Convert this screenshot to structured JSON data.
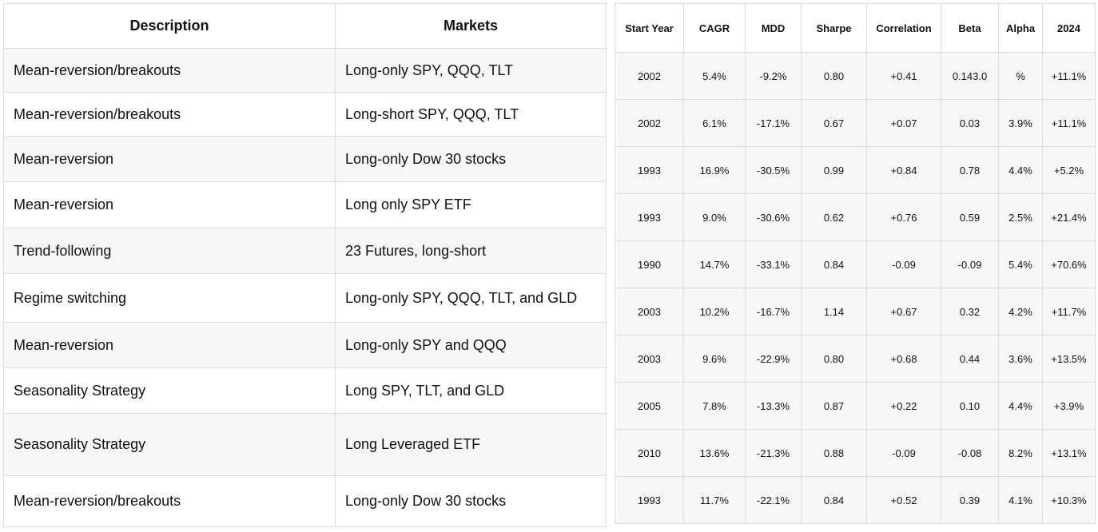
{
  "strategies": {
    "headers": {
      "description": "Description",
      "markets": "Markets"
    },
    "rows": [
      {
        "description": "Mean-reversion/breakouts",
        "markets": "Long-only SPY, QQQ, TLT"
      },
      {
        "description": "Mean-reversion/breakouts",
        "markets": "Long-short SPY, QQQ, TLT"
      },
      {
        "description": "Mean-reversion",
        "markets": "Long-only Dow 30 stocks"
      },
      {
        "description": "Mean-reversion",
        "markets": "Long only SPY ETF"
      },
      {
        "description": "Trend-following",
        "markets": "23 Futures, long-short"
      },
      {
        "description": "Regime switching",
        "markets": "Long-only SPY, QQQ, TLT, and GLD"
      },
      {
        "description": "Mean-reversion",
        "markets": "Long-only SPY and QQQ"
      },
      {
        "description": "Seasonality Strategy",
        "markets": "Long SPY, TLT, and GLD"
      },
      {
        "description": "Seasonality Strategy",
        "markets": "Long Leveraged ETF"
      },
      {
        "description": "Mean-reversion/breakouts",
        "markets": "Long-only Dow 30 stocks"
      }
    ]
  },
  "metrics": {
    "headers": [
      "Start Year",
      "CAGR",
      "MDD",
      "Sharpe",
      "Correlation",
      "Beta",
      "Alpha",
      "2024"
    ],
    "rows": [
      [
        "2002",
        "5.4%",
        "-9.2%",
        "0.80",
        "+0.41",
        "0.143.0",
        "%",
        "+11.1%"
      ],
      [
        "2002",
        "6.1%",
        "-17.1%",
        "0.67",
        "+0.07",
        "0.03",
        "3.9%",
        "+11.1%"
      ],
      [
        "1993",
        "16.9%",
        "-30.5%",
        "0.99",
        "+0.84",
        "0.78",
        "4.4%",
        "+5.2%"
      ],
      [
        "1993",
        "9.0%",
        "-30.6%",
        "0.62",
        "+0.76",
        "0.59",
        "2.5%",
        "+21.4%"
      ],
      [
        "1990",
        "14.7%",
        "-33.1%",
        "0.84",
        "-0.09",
        "-0.09",
        "5.4%",
        "+70.6%"
      ],
      [
        "2003",
        "10.2%",
        "-16.7%",
        "1.14",
        "+0.67",
        "0.32",
        "4.2%",
        "+11.7%"
      ],
      [
        "2003",
        "9.6%",
        "-22.9%",
        "0.80",
        "+0.68",
        "0.44",
        "3.6%",
        "+13.5%"
      ],
      [
        "2005",
        "7.8%",
        "-13.3%",
        "0.87",
        "+0.22",
        "0.10",
        "4.4%",
        "+3.9%"
      ],
      [
        "2010",
        "13.6%",
        "-21.3%",
        "0.88",
        "-0.09",
        "-0.08",
        "8.2%",
        "+13.1%"
      ],
      [
        "1993",
        "11.7%",
        "-22.1%",
        "0.84",
        "+0.52",
        "0.39",
        "4.1%",
        "+10.3%"
      ]
    ]
  }
}
